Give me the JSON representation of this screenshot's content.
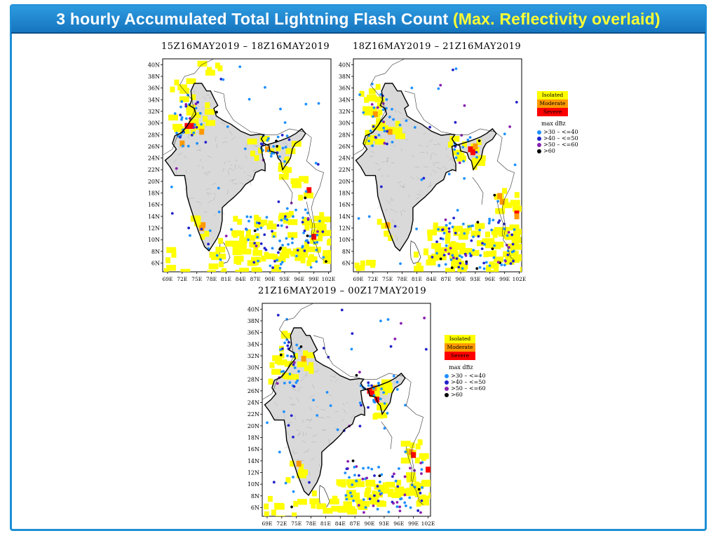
{
  "header": {
    "title_main": "3 hourly Accumulated Total Lightning Flash Count",
    "title_highlight": "(Max. Reflectivity overlaid)"
  },
  "panels": [
    {
      "time_range": "15Z16MAY2019  –  18Z16MAY2019"
    },
    {
      "time_range": "18Z16MAY2019  –  21Z16MAY2019"
    },
    {
      "time_range": "21Z16MAY2019  –  00Z17MAY2019"
    }
  ],
  "axes": {
    "lat_labels": [
      "40N",
      "38N",
      "36N",
      "34N",
      "32N",
      "30N",
      "28N",
      "26N",
      "24N",
      "22N",
      "20N",
      "18N",
      "16N",
      "14N",
      "12N",
      "10N",
      "8N",
      "6N"
    ],
    "lon_labels": [
      "69E",
      "72E",
      "75E",
      "78E",
      "81E",
      "84E",
      "87E",
      "90E",
      "93E",
      "96E",
      "99E",
      "102E"
    ]
  },
  "legend": {
    "categories": [
      {
        "label": "Isolated",
        "color": "#ffff00"
      },
      {
        "label": "Moderate",
        "color": "#ff9900"
      },
      {
        "label": "Severe",
        "color": "#ff0000"
      }
    ],
    "max_dbz_title": "max dBz",
    "dbz_classes": [
      {
        "label": ">30  –  <=40",
        "color": "#1e90ff"
      },
      {
        "label": ">40  –  <=50",
        "color": "#2222cc"
      },
      {
        "label": ">50  –  <=60",
        "color": "#8a1fb0"
      },
      {
        "label": ">60",
        "color": "#000000"
      }
    ]
  },
  "colors": {
    "frame": "#1f8fd6",
    "isolated": "#ffff00",
    "moderate": "#ff9900",
    "severe": "#ff0000",
    "land": "#d9d9d9"
  }
}
